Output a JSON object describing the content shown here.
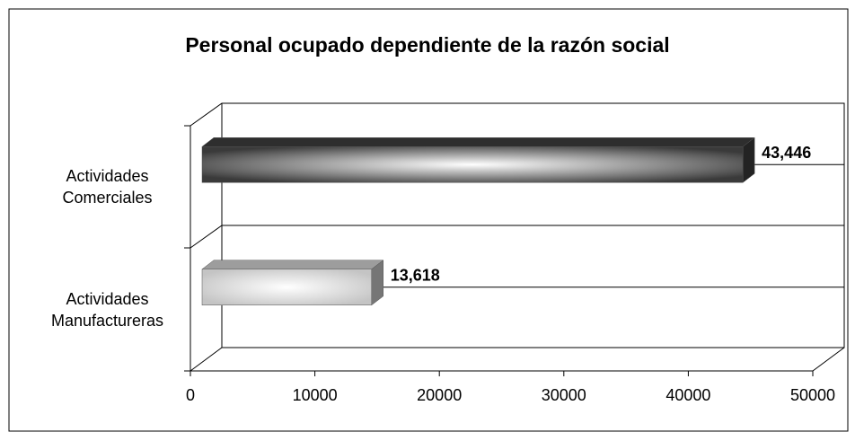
{
  "chart_data": {
    "type": "bar3d_horizontal",
    "title": "Personal ocupado dependiente de la razón social",
    "categories": [
      "Actividades Comerciales",
      "Actividades Manufactureras"
    ],
    "values": [
      43446,
      13618
    ],
    "value_labels": [
      "43,446",
      "13,618"
    ],
    "colors": [
      "#3a3a3a",
      "#c4c4c4"
    ],
    "xlim": [
      0,
      50000
    ],
    "xticks": [
      0,
      10000,
      20000,
      30000,
      40000,
      50000
    ]
  }
}
